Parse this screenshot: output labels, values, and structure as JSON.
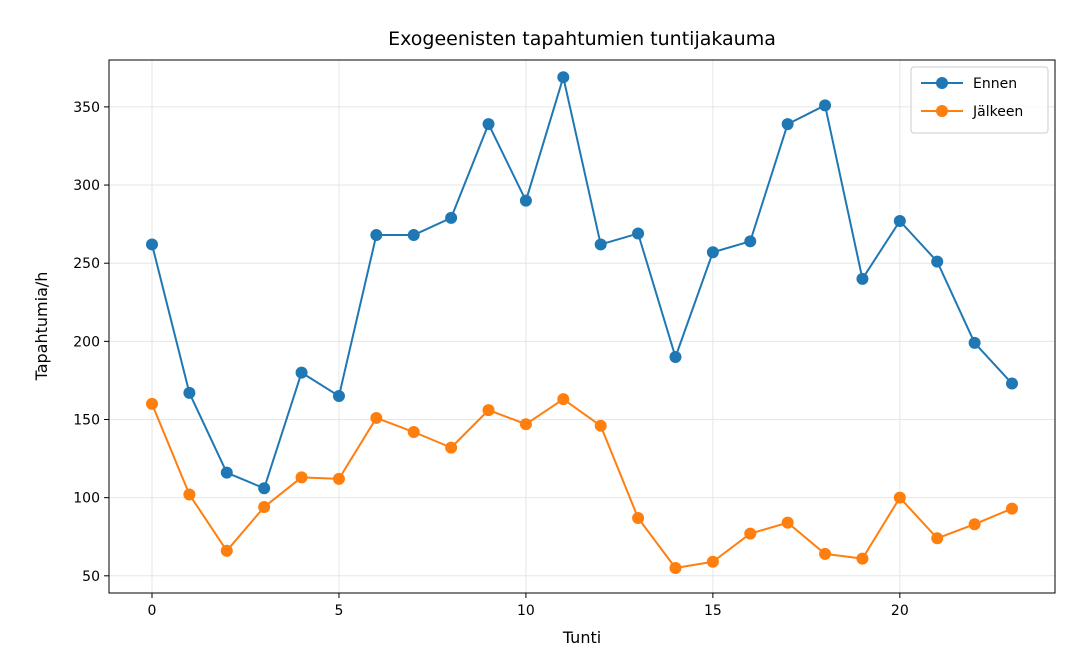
{
  "chart_data": {
    "type": "line",
    "title": "Exogeenisten tapahtumien tuntijakauma",
    "xlabel": "Tunti",
    "ylabel": "Tapahtumia/h",
    "x": [
      0,
      1,
      2,
      3,
      4,
      5,
      6,
      7,
      8,
      9,
      10,
      11,
      12,
      13,
      14,
      15,
      16,
      17,
      18,
      19,
      20,
      21,
      22,
      23
    ],
    "xlim": [
      -1.15,
      24.15
    ],
    "ylim": [
      39,
      380
    ],
    "xticks": [
      0,
      5,
      10,
      15,
      20
    ],
    "yticks": [
      50,
      100,
      150,
      200,
      250,
      300,
      350
    ],
    "grid": true,
    "legend_position": "top-right",
    "series": [
      {
        "name": "Ennen",
        "color": "#1f77b4",
        "values": [
          262,
          167,
          116,
          106,
          180,
          165,
          268,
          268,
          279,
          339,
          290,
          369,
          262,
          269,
          190,
          257,
          264,
          339,
          351,
          240,
          277,
          251,
          199,
          173
        ]
      },
      {
        "name": "Jälkeen",
        "color": "#ff7f0e",
        "values": [
          160,
          102,
          66,
          94,
          113,
          112,
          151,
          142,
          132,
          156,
          147,
          163,
          146,
          87,
          55,
          59,
          77,
          84,
          64,
          61,
          100,
          74,
          83,
          93
        ]
      }
    ]
  }
}
